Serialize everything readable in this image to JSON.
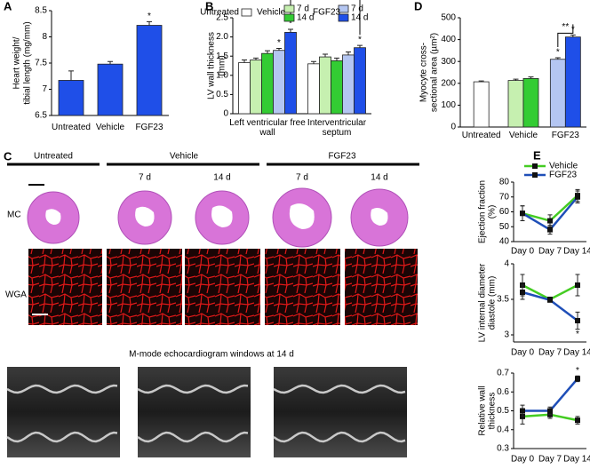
{
  "panel_c": {
    "label": "C",
    "groups": [
      "Untreated",
      "Vehicle",
      "FGF23"
    ],
    "columns": [
      "7 d",
      "14 d",
      "7 d",
      "14 d"
    ],
    "rows": [
      "MC",
      "WGA"
    ],
    "caption": "M-mode echocardiogram windows at 14 d"
  },
  "chart_data": [
    {
      "type": "bar",
      "label": "A",
      "ylabel": [
        "Heart weight/",
        "tibial length (mg/mm)"
      ],
      "categories": [
        "Untreated",
        "Vehicle",
        "FGF23"
      ],
      "values": [
        7.17,
        7.48,
        8.22
      ],
      "errors": [
        0.18,
        0.05,
        0.07
      ],
      "significance": [
        null,
        null,
        "*"
      ],
      "color": "#1f4fe8",
      "ylim": [
        6.5,
        8.5
      ],
      "yticks": [
        6.5,
        7,
        7.5,
        8,
        8.5
      ]
    },
    {
      "type": "bar",
      "label": "B",
      "ylabel": [
        "LV wall thickness",
        "(mm)"
      ],
      "categories": [
        "Left ventricular free wall",
        "Interventricular septum"
      ],
      "legend_groups": [
        "Vehicle",
        "FGF23"
      ],
      "bracket": "**",
      "series": [
        {
          "name": "Untreated",
          "color": "#ffffff",
          "values": [
            1.33,
            1.3
          ],
          "errors": [
            0.07,
            0.06
          ]
        },
        {
          "name": "7 d",
          "color": "#c6f0b0",
          "values": [
            1.4,
            1.48
          ],
          "errors": [
            0.05,
            0.07
          ]
        },
        {
          "name": "14 d",
          "color": "#33cc33",
          "values": [
            1.57,
            1.38
          ],
          "errors": [
            0.07,
            0.07
          ]
        },
        {
          "name": "7 d",
          "color": "#b4c6f2",
          "values": [
            1.65,
            1.53
          ],
          "errors": [
            0.05,
            0.08
          ],
          "significance": [
            "*",
            null
          ]
        },
        {
          "name": "14 d",
          "color": "#1f4fe8",
          "values": [
            2.12,
            1.72
          ],
          "errors": [
            0.08,
            0.06
          ],
          "significance": [
            "*",
            "*"
          ]
        }
      ],
      "ylim": [
        0,
        2.5
      ],
      "yticks": [
        0,
        0.5,
        {
          "value": 1,
          "label": "1.0"
        },
        1.5,
        {
          "value": 2,
          "label": "2.0"
        },
        2.5
      ]
    },
    {
      "type": "bar",
      "label": "D",
      "ylabel": [
        "Myocyte cross-",
        "sectional area (µm²)"
      ],
      "categories": [
        "Untreated",
        "Vehicle",
        "FGF23"
      ],
      "bracket": "**",
      "series": [
        {
          "color": "#ffffff",
          "values": [
            207,
            null,
            null
          ],
          "errors": [
            4,
            null,
            null
          ]
        },
        {
          "color": "#c6f0b0",
          "values": [
            null,
            213,
            null
          ],
          "errors": [
            null,
            6,
            null
          ]
        },
        {
          "color": "#33cc33",
          "values": [
            null,
            222,
            null
          ],
          "errors": [
            null,
            7,
            null
          ]
        },
        {
          "color": "#b4c6f2",
          "values": [
            null,
            null,
            310
          ],
          "errors": [
            null,
            null,
            7
          ],
          "significance": [
            null,
            null,
            "*"
          ]
        },
        {
          "color": "#1f4fe8",
          "values": [
            null,
            null,
            412
          ],
          "errors": [
            null,
            null,
            9
          ],
          "significance": [
            null,
            null,
            "*"
          ]
        }
      ],
      "ylim": [
        0,
        500
      ],
      "yticks": [
        0,
        100,
        200,
        300,
        400,
        500
      ]
    },
    {
      "type": "line",
      "label": "E",
      "ylabel": [
        "Ejection fraction",
        "(%)"
      ],
      "categories": [
        "Day 0",
        "Day 7",
        "Day 14"
      ],
      "series": [
        {
          "name": "Vehicle",
          "color": "#44cc22",
          "values": [
            59,
            54,
            71
          ],
          "errors": [
            5,
            4,
            4
          ]
        },
        {
          "name": "FGF23",
          "color": "#1f4fb8",
          "values": [
            59,
            48,
            70
          ],
          "errors": [
            5,
            3,
            4
          ]
        }
      ],
      "ylim": [
        40,
        80
      ],
      "yticks": [
        40,
        50,
        60,
        70,
        80
      ]
    },
    {
      "type": "line",
      "ylabel": [
        "LV internal diameter",
        "diastole (mm)"
      ],
      "categories": [
        "Day 0",
        "Day 7",
        "Day 14"
      ],
      "series": [
        {
          "color": "#44cc22",
          "values": [
            3.7,
            3.5,
            3.7
          ],
          "errors": [
            0.15,
            0.02,
            0.15
          ]
        },
        {
          "color": "#1f4fb8",
          "values": [
            3.6,
            3.49,
            3.2
          ],
          "errors": [
            0.1,
            0.02,
            0.12
          ],
          "significance": [
            null,
            null,
            "*"
          ]
        }
      ],
      "ylim": [
        2.9,
        4
      ],
      "yticks": [
        3,
        3.5,
        4
      ]
    },
    {
      "type": "line",
      "ylabel": [
        "Relative wall",
        "thickness"
      ],
      "categories": [
        "Day 0",
        "Day 7",
        "Day 14"
      ],
      "series": [
        {
          "color": "#44cc22",
          "values": [
            0.47,
            0.48,
            0.45
          ],
          "errors": [
            0.04,
            0.02,
            0.02
          ]
        },
        {
          "color": "#1f4fb8",
          "values": [
            0.5,
            0.5,
            0.67
          ],
          "errors": [
            0.03,
            0.02,
            0.015
          ],
          "significance": [
            null,
            null,
            "*"
          ]
        }
      ],
      "ylim": [
        0.3,
        0.7
      ],
      "yticks": [
        0.3,
        0.4,
        0.5,
        0.6,
        0.7
      ]
    }
  ]
}
